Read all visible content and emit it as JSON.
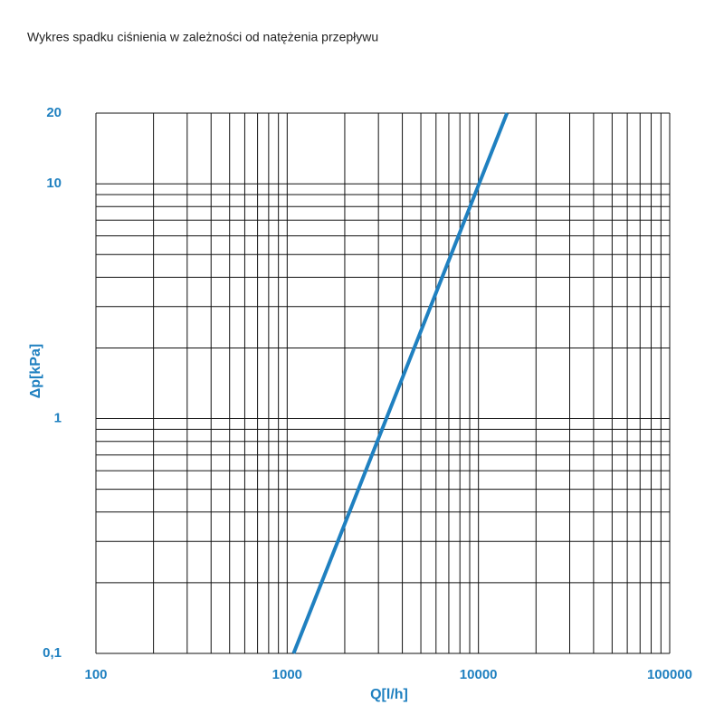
{
  "chart_data": {
    "type": "line",
    "title": "Wykres spadku ciśnienia w zależności od natężenia przepływu",
    "x_label": "Q[l/h]",
    "y_label": "Δp[kPa]",
    "log_x": true,
    "log_y": true,
    "grid": true,
    "xlim": [
      100,
      100000
    ],
    "ylim": [
      0.1,
      20
    ],
    "xticks": [
      100,
      1000,
      10000,
      100000
    ],
    "yticks": [
      {
        "value": 0.1,
        "label": "0,1"
      },
      1,
      10,
      20
    ],
    "xminor_ticks": [
      200,
      300,
      400,
      500,
      600,
      700,
      800,
      900,
      2000,
      3000,
      4000,
      5000,
      6000,
      7000,
      8000,
      9000,
      20000,
      30000,
      40000,
      50000,
      60000,
      70000,
      80000,
      90000
    ],
    "yminor_ticks": [
      0.2,
      0.3,
      0.4,
      0.5,
      0.6,
      0.7,
      0.8,
      0.9,
      2,
      3,
      4,
      5,
      6,
      7,
      8,
      9
    ],
    "series": [
      {
        "color": "#1f80c0",
        "x": [
          1080,
          14100
        ],
        "values": [
          0.1,
          20
        ]
      }
    ]
  }
}
